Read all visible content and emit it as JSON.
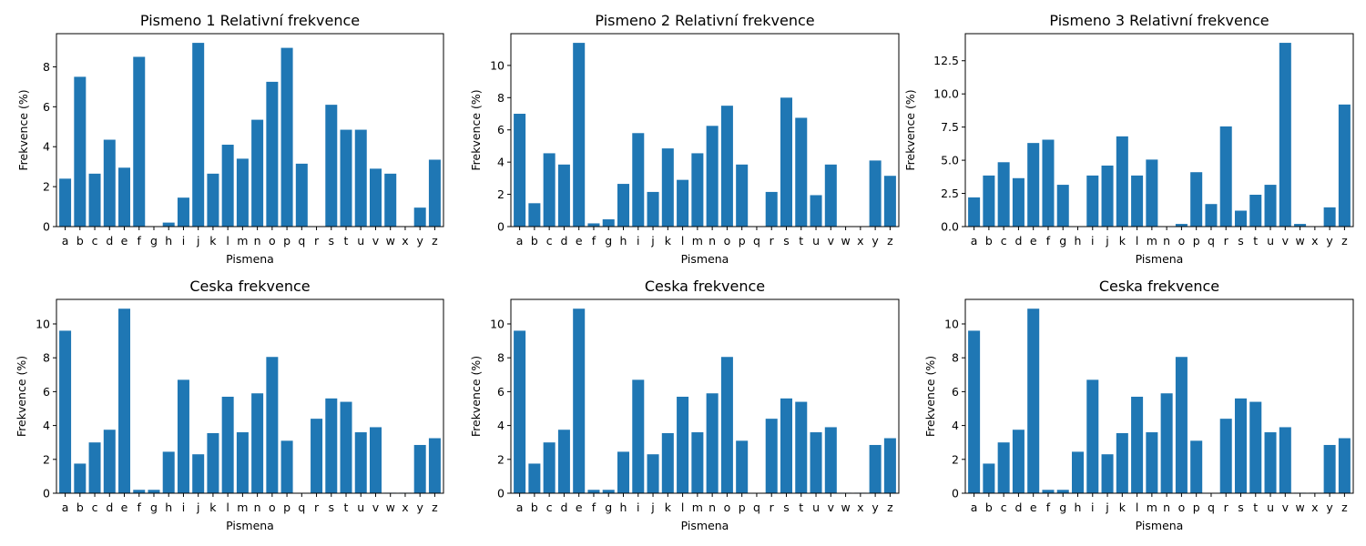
{
  "chart_data": [
    {
      "type": "bar",
      "title": "Pismeno 1 Relativní frekvence",
      "xlabel": "Pismena",
      "ylabel": "Frekvence (%)",
      "categories": [
        "a",
        "b",
        "c",
        "d",
        "e",
        "f",
        "g",
        "h",
        "i",
        "j",
        "k",
        "l",
        "m",
        "n",
        "o",
        "p",
        "q",
        "r",
        "s",
        "t",
        "u",
        "v",
        "w",
        "x",
        "y",
        "z"
      ],
      "values": [
        2.4,
        7.5,
        2.65,
        4.35,
        2.95,
        8.5,
        0,
        0.2,
        1.45,
        9.2,
        2.65,
        4.1,
        3.4,
        5.35,
        7.25,
        8.95,
        3.15,
        0,
        6.1,
        4.85,
        4.85,
        2.9,
        2.65,
        0,
        0.95,
        3.35
      ],
      "ylim": [
        0,
        9.66
      ],
      "yticks": [
        0,
        2,
        4,
        6,
        8
      ],
      "ytick_labels": [
        "0",
        "2",
        "4",
        "6",
        "8"
      ],
      "color": "#1f77b4"
    },
    {
      "type": "bar",
      "title": "Pismeno 2 Relativní frekvence",
      "xlabel": "Pismena",
      "ylabel": "Frekvence (%)",
      "categories": [
        "a",
        "b",
        "c",
        "d",
        "e",
        "f",
        "g",
        "h",
        "i",
        "j",
        "k",
        "l",
        "m",
        "n",
        "o",
        "p",
        "q",
        "r",
        "s",
        "t",
        "u",
        "v",
        "w",
        "x",
        "y",
        "z"
      ],
      "values": [
        7.0,
        1.45,
        4.55,
        3.85,
        11.4,
        0.2,
        0.45,
        2.65,
        5.8,
        2.15,
        4.85,
        2.9,
        4.55,
        6.25,
        7.5,
        3.85,
        0,
        2.15,
        8.0,
        6.75,
        1.95,
        3.85,
        0,
        0,
        4.1,
        3.15
      ],
      "ylim": [
        0,
        11.97
      ],
      "yticks": [
        0,
        2,
        4,
        6,
        8,
        10
      ],
      "ytick_labels": [
        "0",
        "2",
        "4",
        "6",
        "8",
        "10"
      ],
      "color": "#1f77b4"
    },
    {
      "type": "bar",
      "title": "Pismeno 3 Relativní frekvence",
      "xlabel": "Pismena",
      "ylabel": "Frekvence (%)",
      "categories": [
        "a",
        "b",
        "c",
        "d",
        "e",
        "f",
        "g",
        "h",
        "i",
        "j",
        "k",
        "l",
        "m",
        "n",
        "o",
        "p",
        "q",
        "r",
        "s",
        "t",
        "u",
        "v",
        "w",
        "x",
        "y",
        "z"
      ],
      "values": [
        2.2,
        3.85,
        4.85,
        3.65,
        6.3,
        6.55,
        3.15,
        0,
        3.85,
        4.6,
        6.8,
        3.85,
        5.05,
        0,
        0.2,
        4.1,
        1.7,
        7.55,
        1.2,
        2.4,
        3.15,
        13.85,
        0.2,
        0,
        1.45,
        9.2
      ],
      "ylim": [
        0,
        14.54
      ],
      "yticks": [
        0,
        2.5,
        5,
        7.5,
        10,
        12.5
      ],
      "ytick_labels": [
        "0.0",
        "2.5",
        "5.0",
        "7.5",
        "10.0",
        "12.5"
      ],
      "color": "#1f77b4"
    },
    {
      "type": "bar",
      "title": "Ceska frekvence",
      "xlabel": "Pismena",
      "ylabel": "Frekvence (%)",
      "categories": [
        "a",
        "b",
        "c",
        "d",
        "e",
        "f",
        "g",
        "h",
        "i",
        "j",
        "k",
        "l",
        "m",
        "n",
        "o",
        "p",
        "q",
        "r",
        "s",
        "t",
        "u",
        "v",
        "w",
        "x",
        "y",
        "z"
      ],
      "values": [
        9.6,
        1.75,
        3.0,
        3.75,
        10.9,
        0.2,
        0.2,
        2.45,
        6.7,
        2.3,
        3.55,
        5.7,
        3.6,
        5.9,
        8.05,
        3.1,
        0,
        4.4,
        5.6,
        5.4,
        3.6,
        3.9,
        0.03,
        0.03,
        2.85,
        3.25
      ],
      "ylim": [
        0,
        11.45
      ],
      "yticks": [
        0,
        2,
        4,
        6,
        8,
        10
      ],
      "ytick_labels": [
        "0",
        "2",
        "4",
        "6",
        "8",
        "10"
      ],
      "color": "#1f77b4"
    },
    {
      "type": "bar",
      "title": "Ceska frekvence",
      "xlabel": "Pismena",
      "ylabel": "Frekvence (%)",
      "categories": [
        "a",
        "b",
        "c",
        "d",
        "e",
        "f",
        "g",
        "h",
        "i",
        "j",
        "k",
        "l",
        "m",
        "n",
        "o",
        "p",
        "q",
        "r",
        "s",
        "t",
        "u",
        "v",
        "w",
        "x",
        "y",
        "z"
      ],
      "values": [
        9.6,
        1.75,
        3.0,
        3.75,
        10.9,
        0.2,
        0.2,
        2.45,
        6.7,
        2.3,
        3.55,
        5.7,
        3.6,
        5.9,
        8.05,
        3.1,
        0,
        4.4,
        5.6,
        5.4,
        3.6,
        3.9,
        0.03,
        0.03,
        2.85,
        3.25
      ],
      "ylim": [
        0,
        11.45
      ],
      "yticks": [
        0,
        2,
        4,
        6,
        8,
        10
      ],
      "ytick_labels": [
        "0",
        "2",
        "4",
        "6",
        "8",
        "10"
      ],
      "color": "#1f77b4"
    },
    {
      "type": "bar",
      "title": "Ceska frekvence",
      "xlabel": "Pismena",
      "ylabel": "Frekvence (%)",
      "categories": [
        "a",
        "b",
        "c",
        "d",
        "e",
        "f",
        "g",
        "h",
        "i",
        "j",
        "k",
        "l",
        "m",
        "n",
        "o",
        "p",
        "q",
        "r",
        "s",
        "t",
        "u",
        "v",
        "w",
        "x",
        "y",
        "z"
      ],
      "values": [
        9.6,
        1.75,
        3.0,
        3.75,
        10.9,
        0.2,
        0.2,
        2.45,
        6.7,
        2.3,
        3.55,
        5.7,
        3.6,
        5.9,
        8.05,
        3.1,
        0,
        4.4,
        5.6,
        5.4,
        3.6,
        3.9,
        0.03,
        0.03,
        2.85,
        3.25
      ],
      "ylim": [
        0,
        11.45
      ],
      "yticks": [
        0,
        2,
        4,
        6,
        8,
        10
      ],
      "ytick_labels": [
        "0",
        "2",
        "4",
        "6",
        "8",
        "10"
      ],
      "color": "#1f77b4"
    }
  ]
}
